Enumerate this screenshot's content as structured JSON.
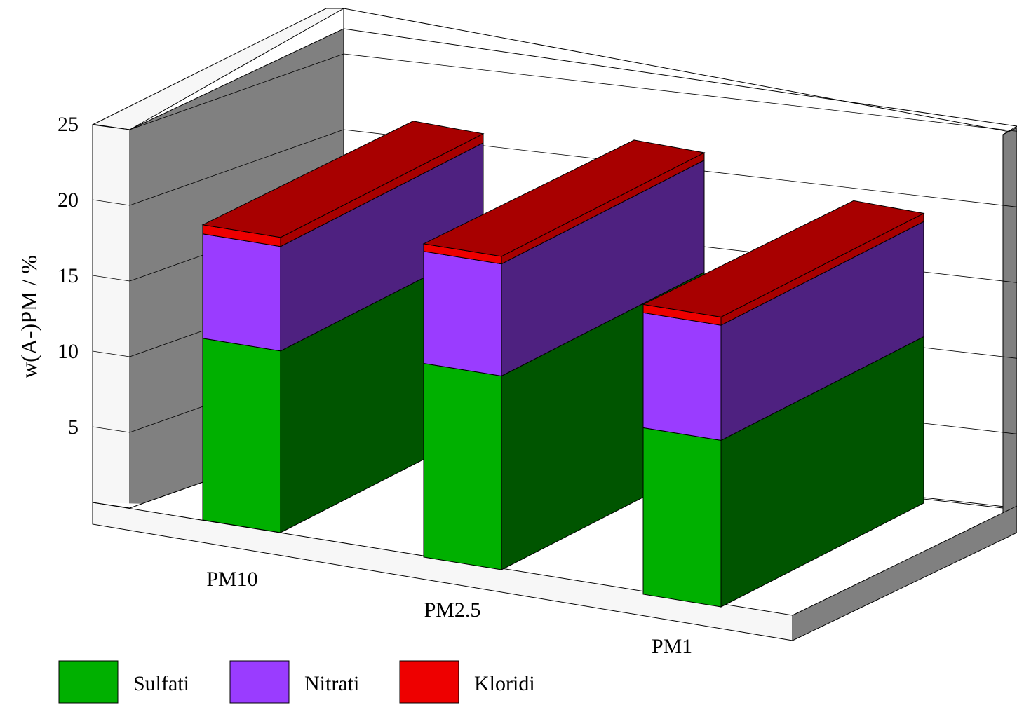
{
  "chart_data": {
    "type": "bar",
    "stacked": true,
    "three_d": true,
    "title": "",
    "xlabel": "",
    "ylabel": "w(A-)PM / %",
    "ylim": [
      0,
      25
    ],
    "yticks": [
      5,
      10,
      15,
      20,
      25
    ],
    "grid": true,
    "legend_position": "bottom",
    "categories": [
      "PM10",
      "PM2.5",
      "PM1"
    ],
    "series": [
      {
        "name": "Sulfati",
        "values": [
          12.0,
          12.8,
          11.0
        ],
        "color": "#00b000",
        "side_color": "#005500"
      },
      {
        "name": "Nitrati",
        "values": [
          6.9,
          7.4,
          7.6
        ],
        "color": "#9a3cff",
        "side_color": "#4e2180"
      },
      {
        "name": "Kloridi",
        "values": [
          0.6,
          0.5,
          0.55
        ],
        "color": "#ee0000",
        "side_color": "#a80000"
      }
    ],
    "colors": {
      "back_wall": "#ffffff",
      "left_wall": "#808080",
      "floor_edge": "#808080",
      "gridline": "#000000"
    }
  }
}
